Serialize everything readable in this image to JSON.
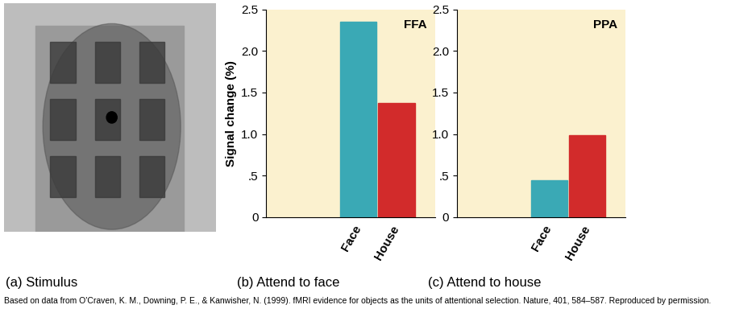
{
  "stimulus": {
    "caption": "(a) Stimulus"
  },
  "source": "Based on data from O'Craven, K. M., Downing, P. E., & Kanwisher, N. (1999). fMRI evidence for objects as the units of attentional selection. Nature, 401, 584–587. Reproduced by permission.",
  "chart_data": [
    {
      "type": "bar",
      "annotation": "FFA",
      "ylabel": "Signal change (%)",
      "xlabel": "(b) Attend to face",
      "categories": [
        "Face",
        "House"
      ],
      "values": [
        2.35,
        1.37
      ],
      "colors": [
        "#3aa9b5",
        "#d22b2b"
      ],
      "ylim": [
        0,
        2.5
      ],
      "yticks": [
        0,
        {
          "value": 0.5,
          "label": ".5"
        },
        1.0,
        1.5,
        2.0,
        2.5
      ]
    },
    {
      "type": "bar",
      "annotation": "PPA",
      "xlabel": "(c) Attend to house",
      "categories": [
        "Face",
        "House"
      ],
      "values": [
        0.44,
        0.99
      ],
      "colors": [
        "#3aa9b5",
        "#d22b2b"
      ],
      "ylim": [
        0,
        2.5
      ],
      "yticks": [
        0,
        {
          "value": 0.5,
          "label": ".5"
        },
        1.0,
        1.5,
        2.0,
        2.5
      ]
    }
  ]
}
